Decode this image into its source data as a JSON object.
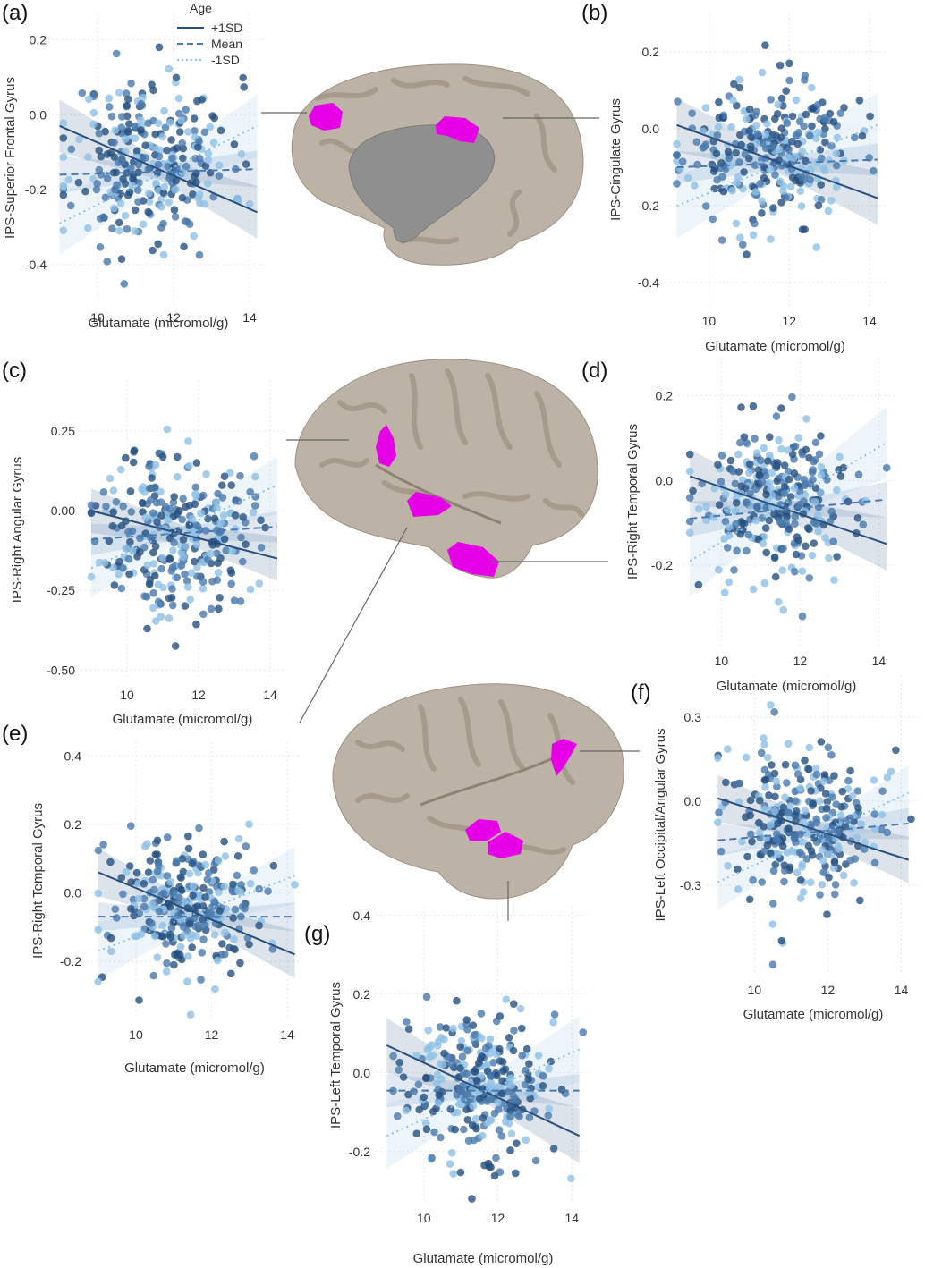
{
  "colors": {
    "plus1sd": "#27507f",
    "mean": "#4a79ad",
    "minus1sd": "#8ec0e6",
    "highlight": "#e600e6",
    "brain": "#bdb2a6",
    "brain_dark": "#a69a8d"
  },
  "legend": {
    "title": "Age",
    "entries": [
      {
        "label": "+1SD",
        "style": "solid"
      },
      {
        "label": "Mean",
        "style": "dashed"
      },
      {
        "label": "-1SD",
        "style": "dotted"
      }
    ],
    "placement": "top-right of panel (a)"
  },
  "brains": [
    {
      "name": "medial-view"
    },
    {
      "name": "right-lateral-view"
    },
    {
      "name": "left-lateral-view"
    }
  ],
  "chart_data": [
    {
      "id": "a",
      "panel_label": "(a)",
      "type": "scatter",
      "xlabel": "Glutamate (micromol/g)",
      "ylabel": "IPS-Superior Frontal Gyrus",
      "xlim": [
        8.8,
        14.4
      ],
      "ylim": [
        -0.5,
        0.27
      ],
      "xticks": [
        10,
        12,
        14
      ],
      "xtick_labels": [
        "10",
        "12",
        "14"
      ],
      "yticks": [
        0.2,
        0.0,
        -0.2,
        -0.4
      ],
      "ytick_labels": [
        "0.2",
        "0.0",
        "-0.2",
        "-0.4"
      ],
      "grid": true,
      "seed": 11,
      "n_points": 300,
      "center_y": -0.12,
      "spread": 0.11,
      "series": [
        {
          "name": "+1SD",
          "line": [
            [
              9.0,
              -0.03
            ],
            [
              14.2,
              -0.26
            ]
          ],
          "band": 0.05
        },
        {
          "name": "Mean",
          "line": [
            [
              9.0,
              -0.16
            ],
            [
              14.2,
              -0.145
            ]
          ],
          "band": 0.035
        },
        {
          "name": "-1SD",
          "line": [
            [
              9.0,
              -0.29
            ],
            [
              14.2,
              -0.03
            ]
          ],
          "band": 0.06
        }
      ]
    },
    {
      "id": "b",
      "panel_label": "(b)",
      "type": "scatter",
      "xlabel": "Glutamate (micromol/g)",
      "ylabel": "IPS-Cingulate Gyrus",
      "xlim": [
        8.9,
        14.4
      ],
      "ylim": [
        -0.46,
        0.3
      ],
      "xticks": [
        10,
        12,
        14
      ],
      "xtick_labels": [
        "10",
        "12",
        "14"
      ],
      "yticks": [
        0.2,
        0.0,
        -0.2,
        -0.4
      ],
      "ytick_labels": [
        "0.2",
        "0.0",
        "-0.2",
        "-0.4"
      ],
      "grid": true,
      "seed": 23,
      "n_points": 300,
      "center_y": -0.06,
      "spread": 0.09,
      "series": [
        {
          "name": "+1SD",
          "line": [
            [
              9.2,
              0.01
            ],
            [
              14.2,
              -0.18
            ]
          ],
          "band": 0.05
        },
        {
          "name": "Mean",
          "line": [
            [
              9.2,
              -0.1
            ],
            [
              14.2,
              -0.08
            ]
          ],
          "band": 0.03
        },
        {
          "name": "-1SD",
          "line": [
            [
              9.2,
              -0.2
            ],
            [
              14.2,
              0.01
            ]
          ],
          "band": 0.06
        }
      ]
    },
    {
      "id": "c",
      "panel_label": "(c)",
      "type": "scatter",
      "xlabel": "Glutamate (micromol/g)",
      "ylabel": "IPS-Right Angular Gyrus",
      "xlim": [
        8.7,
        14.4
      ],
      "ylim": [
        -0.53,
        0.41
      ],
      "xticks": [
        10,
        12,
        14
      ],
      "xtick_labels": [
        "10",
        "12",
        "14"
      ],
      "yticks": [
        0.25,
        0.0,
        -0.25,
        -0.5
      ],
      "ytick_labels": [
        "0.25",
        "0.00",
        "-0.25",
        "-0.50"
      ],
      "grid": true,
      "seed": 37,
      "n_points": 300,
      "center_y": -0.06,
      "spread": 0.13,
      "series": [
        {
          "name": "+1SD",
          "line": [
            [
              9.0,
              0.0
            ],
            [
              14.2,
              -0.15
            ]
          ],
          "band": 0.05
        },
        {
          "name": "Mean",
          "line": [
            [
              9.0,
              -0.09
            ],
            [
              14.2,
              -0.05
            ]
          ],
          "band": 0.035
        },
        {
          "name": "-1SD",
          "line": [
            [
              9.0,
              -0.18
            ],
            [
              14.2,
              0.08
            ]
          ],
          "band": 0.065
        }
      ]
    },
    {
      "id": "d",
      "panel_label": "(d)",
      "type": "scatter",
      "xlabel": "Glutamate (micromol/g)",
      "ylabel": "IPS-Right Temporal Gyrus",
      "xlim": [
        8.9,
        14.4
      ],
      "ylim": [
        -0.39,
        0.29
      ],
      "xticks": [
        10,
        12,
        14
      ],
      "xtick_labels": [
        "10",
        "12",
        "14"
      ],
      "yticks": [
        0.2,
        0.0,
        -0.2
      ],
      "ytick_labels": [
        "0.2",
        "0.0",
        "-0.2"
      ],
      "grid": true,
      "seed": 53,
      "n_points": 300,
      "center_y": -0.05,
      "spread": 0.09,
      "series": [
        {
          "name": "+1SD",
          "line": [
            [
              9.2,
              0.01
            ],
            [
              14.2,
              -0.15
            ]
          ],
          "band": 0.045
        },
        {
          "name": "Mean",
          "line": [
            [
              9.2,
              -0.09
            ],
            [
              14.2,
              -0.045
            ]
          ],
          "band": 0.03
        },
        {
          "name": "-1SD",
          "line": [
            [
              9.2,
              -0.19
            ],
            [
              14.2,
              0.09
            ]
          ],
          "band": 0.06
        }
      ]
    },
    {
      "id": "e",
      "panel_label": "(e)",
      "type": "scatter",
      "xlabel": "Glutamate (micromol/g)",
      "ylabel": "IPS-Right Temporal Gyrus",
      "xlim": [
        8.7,
        14.4
      ],
      "ylim": [
        -0.37,
        0.44
      ],
      "xticks": [
        10,
        12,
        14
      ],
      "xtick_labels": [
        "10",
        "12",
        "14"
      ],
      "yticks": [
        0.4,
        0.2,
        0.0,
        -0.2
      ],
      "ytick_labels": [
        "0.4",
        "0.2",
        "0.0",
        "-0.2"
      ],
      "grid": true,
      "seed": 71,
      "n_points": 300,
      "center_y": -0.04,
      "spread": 0.1,
      "series": [
        {
          "name": "+1SD",
          "line": [
            [
              9.0,
              0.06
            ],
            [
              14.2,
              -0.18
            ]
          ],
          "band": 0.05
        },
        {
          "name": "Mean",
          "line": [
            [
              9.0,
              -0.07
            ],
            [
              14.2,
              -0.07
            ]
          ],
          "band": 0.03
        },
        {
          "name": "-1SD",
          "line": [
            [
              9.0,
              -0.17
            ],
            [
              14.2,
              0.05
            ]
          ],
          "band": 0.06
        }
      ]
    },
    {
      "id": "f",
      "panel_label": "(f)",
      "type": "scatter",
      "xlabel": "Glutamate (micromol/g)",
      "ylabel": "IPS-Left Occipital/Angular Gyrus",
      "xlim": [
        8.7,
        14.5
      ],
      "ylim": [
        -0.62,
        0.45
      ],
      "xticks": [
        10,
        12,
        14
      ],
      "xtick_labels": [
        "10",
        "12",
        "14"
      ],
      "yticks": [
        0.3,
        0.0,
        -0.3
      ],
      "ytick_labels": [
        "0.3",
        "0.0",
        "-0.3"
      ],
      "grid": true,
      "seed": 89,
      "n_points": 300,
      "center_y": -0.08,
      "spread": 0.14,
      "series": [
        {
          "name": "+1SD",
          "line": [
            [
              9.0,
              0.01
            ],
            [
              14.2,
              -0.21
            ]
          ],
          "band": 0.06
        },
        {
          "name": "Mean",
          "line": [
            [
              9.0,
              -0.14
            ],
            [
              14.2,
              -0.08
            ]
          ],
          "band": 0.04
        },
        {
          "name": "-1SD",
          "line": [
            [
              9.0,
              -0.29
            ],
            [
              14.2,
              0.03
            ]
          ],
          "band": 0.07
        }
      ]
    },
    {
      "id": "g",
      "panel_label": "(g)",
      "type": "scatter",
      "xlabel": "Glutamate (micromol/g)",
      "ylabel": "IPS-Left Temporal Gyrus",
      "xlim": [
        8.7,
        14.5
      ],
      "ylim": [
        -0.33,
        0.42
      ],
      "xticks": [
        10,
        12,
        14
      ],
      "xtick_labels": [
        "10",
        "12",
        "14"
      ],
      "yticks": [
        0.4,
        0.2,
        0.0,
        -0.2
      ],
      "ytick_labels": [
        "0.4",
        "0.2",
        "0.0",
        "-0.2"
      ],
      "grid": true,
      "seed": 97,
      "n_points": 300,
      "center_y": -0.03,
      "spread": 0.1,
      "series": [
        {
          "name": "+1SD",
          "line": [
            [
              9.0,
              0.07
            ],
            [
              14.2,
              -0.16
            ]
          ],
          "band": 0.05
        },
        {
          "name": "Mean",
          "line": [
            [
              9.0,
              -0.045
            ],
            [
              14.2,
              -0.045
            ]
          ],
          "band": 0.03
        },
        {
          "name": "-1SD",
          "line": [
            [
              9.0,
              -0.16
            ],
            [
              14.2,
              0.06
            ]
          ],
          "band": 0.06
        }
      ]
    }
  ]
}
